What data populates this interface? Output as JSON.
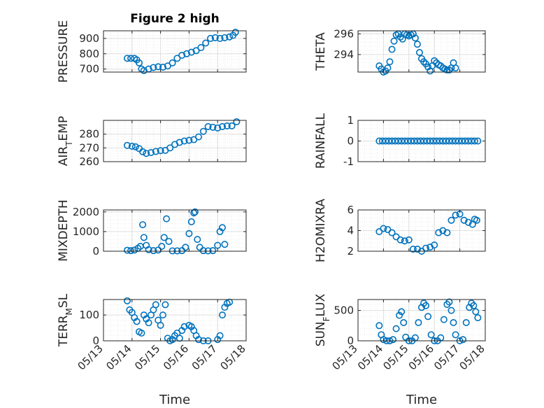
{
  "chart_data": [
    {
      "type": "scatter",
      "title": "Figure 2 high",
      "ylabel": "PRESSURE",
      "xlim": [
        "05/13",
        "05/18"
      ],
      "ylim": [
        680,
        950
      ],
      "y_ticks": [
        "700",
        "800",
        "900"
      ],
      "x_tick_labels": [],
      "xlabel": "",
      "grid": true,
      "color": "#0072BD",
      "points": [
        [
          "05/13 20:00",
          770
        ],
        [
          "05/13 23:00",
          770
        ],
        [
          "05/14 02:00",
          770
        ],
        [
          "05/14 04:00",
          760
        ],
        [
          "05/14 06:00",
          740
        ],
        [
          "05/14 08:00",
          700
        ],
        [
          "05/14 10:00",
          690
        ],
        [
          "05/14 14:00",
          700
        ],
        [
          "05/14 18:00",
          710
        ],
        [
          "05/14 22:00",
          715
        ],
        [
          "05/15 02:00",
          712
        ],
        [
          "05/15 06:00",
          720
        ],
        [
          "05/15 10:00",
          740
        ],
        [
          "05/15 14:00",
          770
        ],
        [
          "05/15 18:00",
          790
        ],
        [
          "05/15 22:00",
          800
        ],
        [
          "05/16 02:00",
          810
        ],
        [
          "05/16 06:00",
          820
        ],
        [
          "05/16 10:00",
          840
        ],
        [
          "05/16 14:00",
          870
        ],
        [
          "05/16 18:00",
          900
        ],
        [
          "05/16 22:00",
          905
        ],
        [
          "05/17 02:00",
          900
        ],
        [
          "05/17 06:00",
          905
        ],
        [
          "05/17 10:00",
          910
        ],
        [
          "05/17 13:00",
          920
        ],
        [
          "05/17 15:00",
          940
        ]
      ]
    },
    {
      "type": "scatter",
      "title": "",
      "ylabel": "THETA",
      "xlim": [
        "05/13",
        "05/18"
      ],
      "ylim": [
        292.3,
        296.3
      ],
      "y_ticks": [
        "294",
        "296"
      ],
      "x_tick_labels": [],
      "xlabel": "",
      "grid": true,
      "color": "#0072BD",
      "points": [
        [
          "05/13 20:00",
          292.9
        ],
        [
          "05/13 22:00",
          292.6
        ],
        [
          "05/14 00:00",
          292.3
        ],
        [
          "05/14 02:00",
          292.4
        ],
        [
          "05/14 04:00",
          292.7
        ],
        [
          "05/14 06:00",
          293.3
        ],
        [
          "05/14 08:00",
          294.5
        ],
        [
          "05/14 10:00",
          295.3
        ],
        [
          "05/14 12:00",
          295.9
        ],
        [
          "05/14 14:00",
          296.0
        ],
        [
          "05/14 16:00",
          295.7
        ],
        [
          "05/14 18:00",
          295.5
        ],
        [
          "05/14 20:00",
          296.0
        ],
        [
          "05/14 22:00",
          295.9
        ],
        [
          "05/15 00:00",
          295.8
        ],
        [
          "05/15 02:00",
          295.9
        ],
        [
          "05/15 04:00",
          296.0
        ],
        [
          "05/15 06:00",
          295.6
        ],
        [
          "05/15 08:00",
          295.0
        ],
        [
          "05/15 10:00",
          294.2
        ],
        [
          "05/15 12:00",
          293.6
        ],
        [
          "05/15 14:00",
          293.3
        ],
        [
          "05/15 16:00",
          293.1
        ],
        [
          "05/15 18:00",
          292.8
        ],
        [
          "05/15 20:00",
          292.4
        ],
        [
          "05/15 22:00",
          292.9
        ],
        [
          "05/16 00:00",
          293.4
        ],
        [
          "05/16 02:00",
          293.2
        ],
        [
          "05/16 04:00",
          293.0
        ],
        [
          "05/16 06:00",
          292.9
        ],
        [
          "05/16 08:00",
          292.7
        ],
        [
          "05/16 10:00",
          292.6
        ],
        [
          "05/16 12:00",
          292.5
        ],
        [
          "05/16 14:00",
          292.5
        ],
        [
          "05/16 16:00",
          292.7
        ],
        [
          "05/16 18:00",
          293.2
        ],
        [
          "05/16 20:00",
          292.7
        ]
      ]
    },
    {
      "type": "scatter",
      "title": "",
      "ylabel": "AIR_TEMP",
      "ylabel_display": {
        "base": "AIR",
        "sub": "T",
        "rest": "EMP"
      },
      "xlim": [
        "05/13",
        "05/18"
      ],
      "ylim": [
        260,
        290
      ],
      "y_ticks": [
        "260",
        "270",
        "280"
      ],
      "x_tick_labels": [],
      "xlabel": "",
      "grid": true,
      "color": "#0072BD",
      "points": [
        [
          "05/13 20:00",
          271.8
        ],
        [
          "05/14 00:00",
          271.2
        ],
        [
          "05/14 03:00",
          270.8
        ],
        [
          "05/14 06:00",
          269.5
        ],
        [
          "05/14 09:00",
          267.2
        ],
        [
          "05/14 12:00",
          266.0
        ],
        [
          "05/14 16:00",
          266.6
        ],
        [
          "05/14 20:00",
          267.4
        ],
        [
          "05/15 00:00",
          268.0
        ],
        [
          "05/15 04:00",
          268.2
        ],
        [
          "05/15 08:00",
          270.0
        ],
        [
          "05/15 12:00",
          272.5
        ],
        [
          "05/15 16:00",
          274.0
        ],
        [
          "05/15 20:00",
          275.0
        ],
        [
          "05/16 00:00",
          275.5
        ],
        [
          "05/16 04:00",
          276.0
        ],
        [
          "05/16 08:00",
          278.0
        ],
        [
          "05/16 12:00",
          282.0
        ],
        [
          "05/16 16:00",
          285.5
        ],
        [
          "05/16 20:00",
          285.0
        ],
        [
          "05/17 00:00",
          284.5
        ],
        [
          "05/17 04:00",
          285.5
        ],
        [
          "05/17 08:00",
          286.0
        ],
        [
          "05/17 12:00",
          286.0
        ],
        [
          "05/17 16:00",
          289.0
        ]
      ]
    },
    {
      "type": "scatter",
      "title": "",
      "ylabel": "RAINFALL",
      "xlim": [
        "05/13",
        "05/18"
      ],
      "ylim": [
        -1,
        1
      ],
      "y_ticks": [
        "-1",
        "0",
        "1"
      ],
      "x_tick_labels": [],
      "xlabel": "",
      "grid": true,
      "color": "#0072BD",
      "points": [
        [
          "05/13 20:00",
          0
        ],
        [
          "05/13 23:00",
          0
        ],
        [
          "05/14 02:00",
          0
        ],
        [
          "05/14 05:00",
          0
        ],
        [
          "05/14 08:00",
          0
        ],
        [
          "05/14 11:00",
          0
        ],
        [
          "05/14 14:00",
          0
        ],
        [
          "05/14 17:00",
          0
        ],
        [
          "05/14 20:00",
          0
        ],
        [
          "05/14 23:00",
          0
        ],
        [
          "05/15 02:00",
          0
        ],
        [
          "05/15 05:00",
          0
        ],
        [
          "05/15 08:00",
          0
        ],
        [
          "05/15 11:00",
          0
        ],
        [
          "05/15 14:00",
          0
        ],
        [
          "05/15 17:00",
          0
        ],
        [
          "05/15 20:00",
          0
        ],
        [
          "05/15 23:00",
          0
        ],
        [
          "05/16 02:00",
          0
        ],
        [
          "05/16 05:00",
          0
        ],
        [
          "05/16 08:00",
          0
        ],
        [
          "05/16 11:00",
          0
        ],
        [
          "05/16 14:00",
          0
        ],
        [
          "05/16 17:00",
          0
        ],
        [
          "05/16 20:00",
          0
        ],
        [
          "05/16 23:00",
          0
        ],
        [
          "05/17 02:00",
          0
        ],
        [
          "05/17 05:00",
          0
        ],
        [
          "05/17 08:00",
          0
        ],
        [
          "05/17 11:00",
          0
        ],
        [
          "05/17 14:00",
          0
        ],
        [
          "05/17 17:00",
          0
        ]
      ]
    },
    {
      "type": "scatter",
      "title": "",
      "ylabel": "MIXDEPTH",
      "xlim": [
        "05/13",
        "05/18"
      ],
      "ylim": [
        0,
        2100
      ],
      "y_ticks": [
        "0",
        "1000",
        "2000"
      ],
      "x_tick_labels": [],
      "xlabel": "",
      "grid": true,
      "color": "#0072BD",
      "points": [
        [
          "05/13 20:00",
          50
        ],
        [
          "05/13 23:00",
          30
        ],
        [
          "05/14 02:00",
          60
        ],
        [
          "05/14 05:00",
          150
        ],
        [
          "05/14 07:00",
          250
        ],
        [
          "05/14 09:00",
          1350
        ],
        [
          "05/14 10:00",
          700
        ],
        [
          "05/14 12:00",
          300
        ],
        [
          "05/14 14:00",
          80
        ],
        [
          "05/14 18:00",
          30
        ],
        [
          "05/14 22:00",
          60
        ],
        [
          "05/15 01:00",
          250
        ],
        [
          "05/15 03:00",
          700
        ],
        [
          "05/15 05:00",
          1650
        ],
        [
          "05/15 07:00",
          500
        ],
        [
          "05/15 10:00",
          20
        ],
        [
          "05/15 14:00",
          20
        ],
        [
          "05/15 18:00",
          30
        ],
        [
          "05/15 21:00",
          200
        ],
        [
          "05/16 00:00",
          900
        ],
        [
          "05/16 02:00",
          1500
        ],
        [
          "05/16 04:00",
          1950
        ],
        [
          "05/16 05:00",
          2000
        ],
        [
          "05/16 07:00",
          600
        ],
        [
          "05/16 09:00",
          200
        ],
        [
          "05/16 12:00",
          30
        ],
        [
          "05/16 16:00",
          20
        ],
        [
          "05/16 20:00",
          30
        ],
        [
          "05/17 00:00",
          300
        ],
        [
          "05/17 02:00",
          1000
        ],
        [
          "05/17 04:00",
          1200
        ],
        [
          "05/17 06:00",
          350
        ]
      ]
    },
    {
      "type": "scatter",
      "title": "",
      "ylabel": "H2OMIXRA",
      "xlim": [
        "05/13",
        "05/18"
      ],
      "ylim": [
        2,
        6
      ],
      "y_ticks": [
        "2",
        "4",
        "6"
      ],
      "x_tick_labels": [],
      "xlabel": "",
      "grid": true,
      "color": "#0072BD",
      "points": [
        [
          "05/13 20:00",
          3.9
        ],
        [
          "05/14 00:00",
          4.2
        ],
        [
          "05/14 04:00",
          4.1
        ],
        [
          "05/14 08:00",
          3.8
        ],
        [
          "05/14 12:00",
          3.4
        ],
        [
          "05/14 16:00",
          3.1
        ],
        [
          "05/14 20:00",
          3.0
        ],
        [
          "05/15 00:00",
          3.1
        ],
        [
          "05/15 04:00",
          2.2
        ],
        [
          "05/15 08:00",
          2.2
        ],
        [
          "05/15 12:00",
          2.0
        ],
        [
          "05/15 16:00",
          2.3
        ],
        [
          "05/15 20:00",
          2.4
        ],
        [
          "05/16 00:00",
          2.6
        ],
        [
          "05/16 04:00",
          3.8
        ],
        [
          "05/16 08:00",
          4.0
        ],
        [
          "05/16 12:00",
          3.8
        ],
        [
          "05/16 16:00",
          5.0
        ],
        [
          "05/16 20:00",
          5.5
        ],
        [
          "05/17 00:00",
          5.6
        ],
        [
          "05/17 04:00",
          5.0
        ],
        [
          "05/17 08:00",
          4.8
        ],
        [
          "05/17 12:00",
          4.6
        ],
        [
          "05/17 14:00",
          5.1
        ],
        [
          "05/17 16:00",
          5.0
        ]
      ]
    },
    {
      "type": "scatter",
      "title": "",
      "ylabel": "TERR_MSL",
      "ylabel_display": {
        "base": "TERR",
        "sub": "M",
        "rest": "SL"
      },
      "xlim": [
        "05/13",
        "05/18"
      ],
      "ylim": [
        0,
        160
      ],
      "y_ticks": [
        "0",
        "100"
      ],
      "x_tick_labels": [
        "05/13",
        "05/14",
        "05/15",
        "05/16",
        "05/17",
        "05/18"
      ],
      "xlabel": "Time",
      "grid": true,
      "color": "#0072BD",
      "points": [
        [
          "05/13 20:00",
          155
        ],
        [
          "05/13 22:00",
          120
        ],
        [
          "05/14 00:00",
          110
        ],
        [
          "05/14 02:00",
          90
        ],
        [
          "05/14 04:00",
          75
        ],
        [
          "05/14 06:00",
          35
        ],
        [
          "05/14 08:00",
          30
        ],
        [
          "05/14 10:00",
          100
        ],
        [
          "05/14 12:00",
          85
        ],
        [
          "05/14 14:00",
          70
        ],
        [
          "05/14 16:00",
          100
        ],
        [
          "05/14 18:00",
          120
        ],
        [
          "05/14 20:00",
          140
        ],
        [
          "05/14 22:00",
          80
        ],
        [
          "05/15 00:00",
          60
        ],
        [
          "05/15 02:00",
          100
        ],
        [
          "05/15 04:00",
          140
        ],
        [
          "05/15 06:00",
          10
        ],
        [
          "05/15 08:00",
          0
        ],
        [
          "05/15 10:00",
          5
        ],
        [
          "05/15 12:00",
          20
        ],
        [
          "05/15 14:00",
          30
        ],
        [
          "05/15 16:00",
          10
        ],
        [
          "05/15 18:00",
          40
        ],
        [
          "05/15 20:00",
          55
        ],
        [
          "05/16 00:00",
          60
        ],
        [
          "05/16 02:00",
          55
        ],
        [
          "05/16 04:00",
          40
        ],
        [
          "05/16 06:00",
          20
        ],
        [
          "05/16 08:00",
          5
        ],
        [
          "05/16 12:00",
          0
        ],
        [
          "05/16 16:00",
          0
        ],
        [
          "05/17 00:00",
          5
        ],
        [
          "05/17 02:00",
          20
        ],
        [
          "05/17 04:00",
          100
        ],
        [
          "05/17 06:00",
          130
        ],
        [
          "05/17 08:00",
          145
        ],
        [
          "05/17 10:00",
          150
        ]
      ]
    },
    {
      "type": "scatter",
      "title": "",
      "ylabel": "SUN_FLUX",
      "ylabel_display": {
        "base": "SUN",
        "sub": "F",
        "rest": "LUX"
      },
      "xlim": [
        "05/13",
        "05/18"
      ],
      "ylim": [
        0,
        680
      ],
      "y_ticks": [
        "0",
        "500"
      ],
      "x_tick_labels": [
        "05/13",
        "05/14",
        "05/15",
        "05/16",
        "05/17",
        "05/18"
      ],
      "xlabel": "Time",
      "grid": true,
      "color": "#0072BD",
      "points": [
        [
          "05/13 20:00",
          250
        ],
        [
          "05/13 22:00",
          100
        ],
        [
          "05/14 00:00",
          20
        ],
        [
          "05/14 03:00",
          0
        ],
        [
          "05/14 06:00",
          0
        ],
        [
          "05/14 09:00",
          20
        ],
        [
          "05/14 12:00",
          200
        ],
        [
          "05/14 15:00",
          420
        ],
        [
          "05/14 17:00",
          480
        ],
        [
          "05/14 19:00",
          300
        ],
        [
          "05/14 21:00",
          60
        ],
        [
          "05/15 00:00",
          0
        ],
        [
          "05/15 03:00",
          0
        ],
        [
          "05/15 06:00",
          50
        ],
        [
          "05/15 09:00",
          300
        ],
        [
          "05/15 12:00",
          550
        ],
        [
          "05/15 14:00",
          620
        ],
        [
          "05/15 16:00",
          580
        ],
        [
          "05/15 18:00",
          400
        ],
        [
          "05/15 21:00",
          100
        ],
        [
          "05/16 00:00",
          0
        ],
        [
          "05/16 03:00",
          0
        ],
        [
          "05/16 06:00",
          50
        ],
        [
          "05/16 09:00",
          350
        ],
        [
          "05/16 12:00",
          600
        ],
        [
          "05/16 14:00",
          640
        ],
        [
          "05/16 16:00",
          500
        ],
        [
          "05/16 18:00",
          300
        ],
        [
          "05/16 20:00",
          100
        ],
        [
          "05/17 00:00",
          0
        ],
        [
          "05/17 03:00",
          20
        ],
        [
          "05/17 06:00",
          300
        ],
        [
          "05/17 09:00",
          550
        ],
        [
          "05/17 11:00",
          620
        ],
        [
          "05/17 13:00",
          580
        ],
        [
          "05/17 15:00",
          480
        ],
        [
          "05/17 17:00",
          380
        ]
      ]
    }
  ]
}
